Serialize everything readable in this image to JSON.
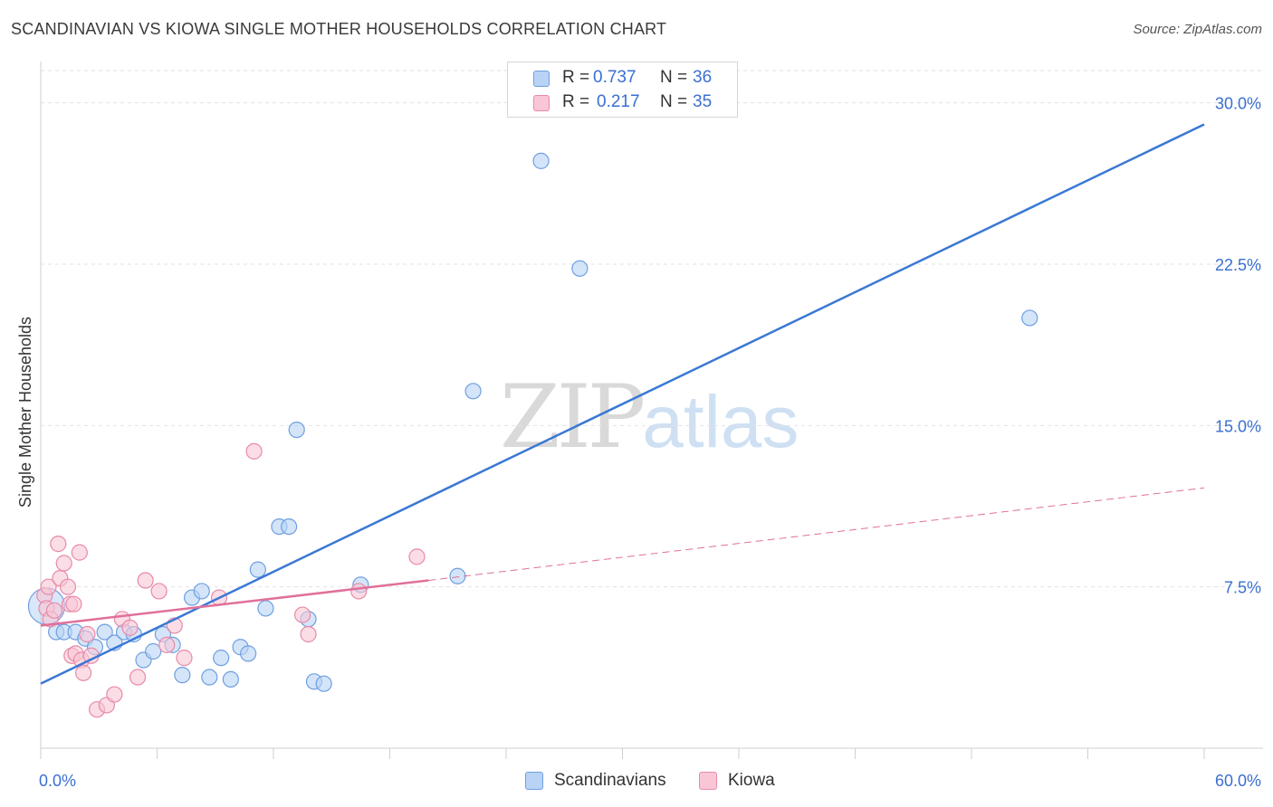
{
  "title": "SCANDINAVIAN VS KIOWA SINGLE MOTHER HOUSEHOLDS CORRELATION CHART",
  "source": "Source: ZipAtlas.com",
  "watermark": {
    "zip": "ZIP",
    "atlas": "atlas"
  },
  "legend_top": [
    {
      "r_label": "R =",
      "r_value": "0.737",
      "n_label": "N =",
      "n_value": "36"
    },
    {
      "r_label": "R =",
      "r_value": "0.217",
      "n_label": "N =",
      "n_value": "35"
    }
  ],
  "legend_bottom": [
    "Scandinavians",
    "Kiowa"
  ],
  "colors": {
    "scandinavians_fill": "#b8d3f5",
    "scandinavians_stroke": "#6f9fe0",
    "scandinavians_line": "#3a78d4",
    "kiowa_fill": "#f9c6d6",
    "kiowa_stroke": "#e88aa8",
    "kiowa_line": "#e0709a",
    "grid": "#e2e2e2",
    "axis_text": "#3a6fd0"
  },
  "chart_data": {
    "type": "scatter",
    "title": "SCANDINAVIAN VS KIOWA SINGLE MOTHER HOUSEHOLDS CORRELATION CHART",
    "xlabel": "",
    "ylabel": "Single Mother Households",
    "xlim": [
      0,
      60
    ],
    "ylim": [
      0,
      31.5
    ],
    "x_tick_labels": [
      "0.0%",
      "60.0%"
    ],
    "y_ticks": [
      7.5,
      15.0,
      22.5,
      30.0
    ],
    "y_tick_labels": [
      "7.5%",
      "15.0%",
      "22.5%",
      "30.0%"
    ],
    "grid": true,
    "legend_position": "top-center",
    "series": [
      {
        "name": "Scandinavians",
        "r": 0.737,
        "n": 36,
        "trend": {
          "x": [
            0,
            60
          ],
          "y": [
            3.0,
            29.0
          ],
          "dashed_from": null
        },
        "points": [
          [
            0.3,
            6.6
          ],
          [
            0.8,
            5.4
          ],
          [
            1.2,
            5.4
          ],
          [
            1.8,
            5.4
          ],
          [
            2.3,
            5.1
          ],
          [
            2.8,
            4.7
          ],
          [
            3.3,
            5.4
          ],
          [
            3.8,
            4.9
          ],
          [
            4.3,
            5.4
          ],
          [
            4.8,
            5.3
          ],
          [
            5.3,
            4.1
          ],
          [
            5.8,
            4.5
          ],
          [
            6.3,
            5.3
          ],
          [
            6.8,
            4.8
          ],
          [
            7.3,
            3.4
          ],
          [
            7.8,
            7.0
          ],
          [
            8.3,
            7.3
          ],
          [
            8.7,
            3.3
          ],
          [
            9.3,
            4.2
          ],
          [
            9.8,
            3.2
          ],
          [
            10.3,
            4.7
          ],
          [
            10.7,
            4.4
          ],
          [
            11.2,
            8.3
          ],
          [
            11.6,
            6.5
          ],
          [
            12.3,
            10.3
          ],
          [
            12.8,
            10.3
          ],
          [
            13.2,
            14.8
          ],
          [
            13.8,
            6.0
          ],
          [
            14.1,
            3.1
          ],
          [
            14.6,
            3.0
          ],
          [
            16.5,
            7.6
          ],
          [
            21.5,
            8.0
          ],
          [
            22.3,
            16.6
          ],
          [
            25.8,
            27.3
          ],
          [
            27.8,
            22.3
          ],
          [
            51.0,
            20.0
          ]
        ]
      },
      {
        "name": "Kiowa",
        "r": 0.217,
        "n": 35,
        "trend": {
          "x": [
            0,
            20,
            60
          ],
          "y": [
            5.7,
            7.8,
            12.1
          ],
          "dashed_from": 20
        },
        "points": [
          [
            0.2,
            7.1
          ],
          [
            0.3,
            6.5
          ],
          [
            0.4,
            7.5
          ],
          [
            0.5,
            6.0
          ],
          [
            0.7,
            6.4
          ],
          [
            0.9,
            9.5
          ],
          [
            1.0,
            7.9
          ],
          [
            1.2,
            8.6
          ],
          [
            1.4,
            7.5
          ],
          [
            1.5,
            6.7
          ],
          [
            1.6,
            4.3
          ],
          [
            1.7,
            6.7
          ],
          [
            1.8,
            4.4
          ],
          [
            2.0,
            9.1
          ],
          [
            2.1,
            4.1
          ],
          [
            2.2,
            3.5
          ],
          [
            2.4,
            5.3
          ],
          [
            2.6,
            4.3
          ],
          [
            2.9,
            1.8
          ],
          [
            3.4,
            2.0
          ],
          [
            3.8,
            2.5
          ],
          [
            4.2,
            6.0
          ],
          [
            4.6,
            5.6
          ],
          [
            5.0,
            3.3
          ],
          [
            5.4,
            7.8
          ],
          [
            6.1,
            7.3
          ],
          [
            6.5,
            4.8
          ],
          [
            6.9,
            5.7
          ],
          [
            7.4,
            4.2
          ],
          [
            9.2,
            7.0
          ],
          [
            11.0,
            13.8
          ],
          [
            13.5,
            6.2
          ],
          [
            13.8,
            5.3
          ],
          [
            16.4,
            7.3
          ],
          [
            19.4,
            8.9
          ]
        ]
      }
    ]
  }
}
